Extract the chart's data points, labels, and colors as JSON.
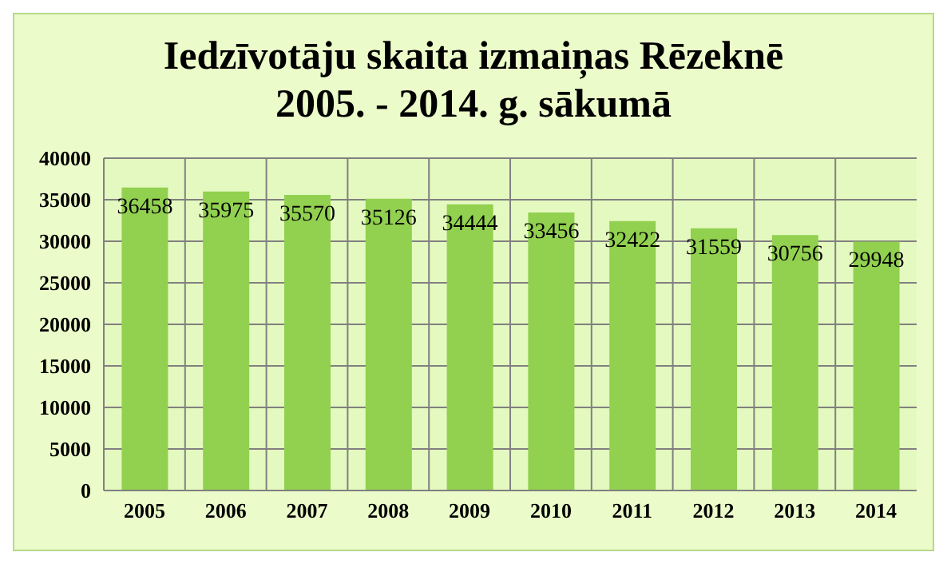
{
  "chart_data": {
    "type": "bar",
    "title": "Iedzīvotāju skaita izmaiņas Rēzeknē\n2005. - 2014. g. sākumā",
    "categories": [
      "2005",
      "2006",
      "2007",
      "2008",
      "2009",
      "2010",
      "2011",
      "2012",
      "2013",
      "2014"
    ],
    "values": [
      36458,
      35975,
      35570,
      35126,
      34444,
      33456,
      32422,
      31559,
      30756,
      29948
    ],
    "color": "#92d050",
    "ylim": [
      0,
      40000
    ],
    "yticks": [
      0,
      5000,
      10000,
      15000,
      20000,
      25000,
      30000,
      35000,
      40000
    ],
    "grid": true,
    "data_labels": true
  }
}
